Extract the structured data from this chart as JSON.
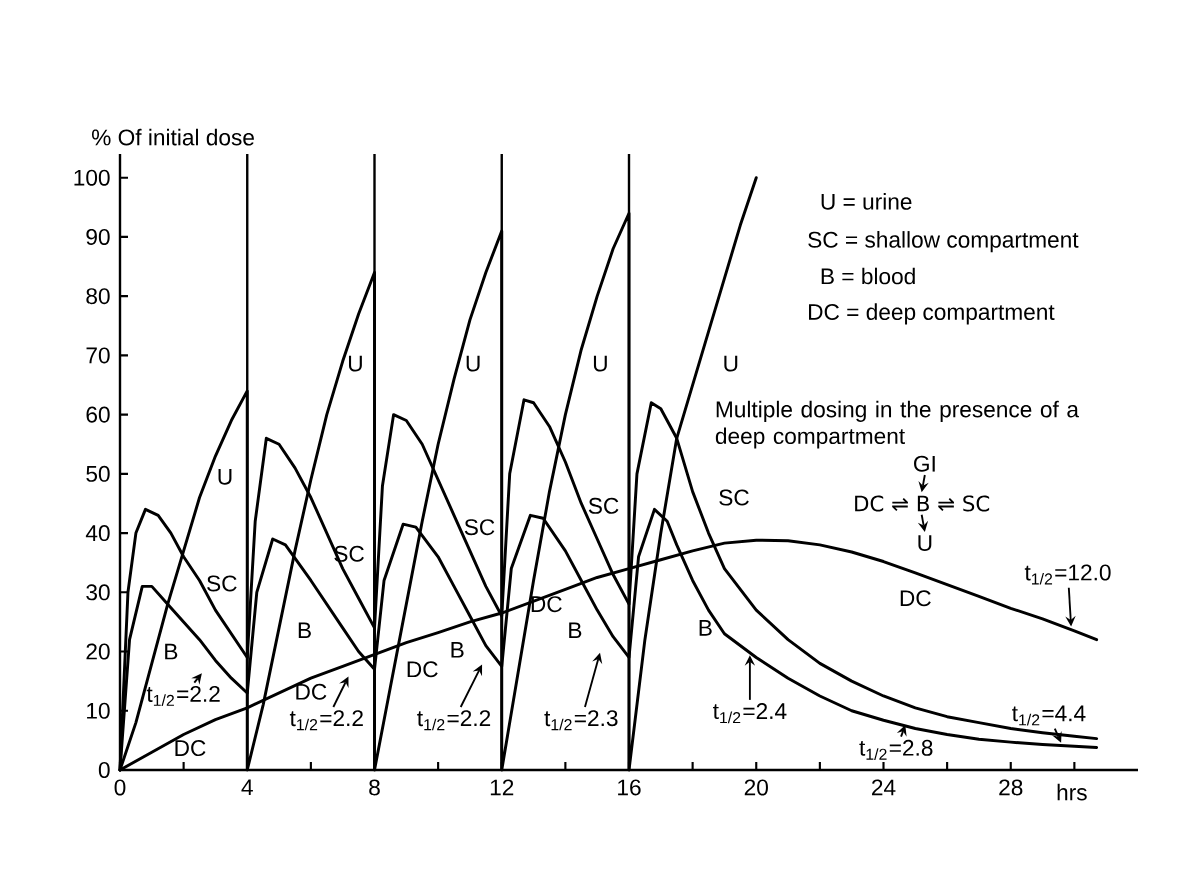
{
  "chart_data": {
    "type": "line",
    "xlabel": "hrs",
    "ylabel": "% Of initial dose",
    "xlim": [
      0,
      32
    ],
    "ylim": [
      0,
      104
    ],
    "xticks": [
      0,
      {
        "value": 2,
        "label": null
      },
      4,
      {
        "value": 6,
        "label": null
      },
      8,
      {
        "value": 10,
        "label": null
      },
      12,
      {
        "value": 14,
        "label": null
      },
      16,
      {
        "value": 18,
        "label": null
      },
      20,
      {
        "value": 22,
        "label": null
      },
      24,
      {
        "value": 26,
        "label": null
      },
      28,
      {
        "value": 30,
        "label": null
      }
    ],
    "yticks": [
      0,
      10,
      20,
      30,
      40,
      50,
      60,
      70,
      80,
      90,
      100
    ],
    "marker": "none",
    "line_style": "solid",
    "series": [
      {
        "color": "#000000",
        "x": [
          0,
          0.5,
          1,
          1.5,
          2,
          2.5,
          3,
          3.5,
          4,
          4,
          4.5,
          5,
          5.5,
          6,
          6.5,
          7,
          7.5,
          8,
          8,
          8.5,
          9,
          9.5,
          10,
          10.5,
          11,
          11.5,
          12,
          12,
          12.5,
          13,
          13.5,
          14,
          14.5,
          15,
          15.5,
          16,
          16,
          16.5,
          17,
          17.5,
          18,
          18.5,
          19,
          19.5,
          20
        ],
        "values": [
          0,
          8,
          18,
          28,
          37,
          46,
          53,
          59,
          64,
          0,
          11,
          24,
          37,
          49,
          60,
          69,
          77,
          84,
          0,
          14,
          28,
          42,
          55,
          66,
          76,
          84,
          91,
          0,
          16,
          32,
          47,
          60,
          71,
          80,
          88,
          94,
          0,
          22,
          40,
          56,
          65,
          74,
          83,
          92,
          100
        ]
      },
      {
        "color": "#000000",
        "x": [
          0,
          0.25,
          0.5,
          0.8,
          1.2,
          1.6,
          2,
          2.5,
          3,
          3.5,
          4,
          4.25,
          4.6,
          5,
          5.5,
          6,
          6.5,
          7,
          7.5,
          8,
          8.25,
          8.6,
          9,
          9.5,
          10,
          10.5,
          11,
          11.5,
          12,
          12.25,
          12.7,
          13,
          13.5,
          14,
          14.5,
          15,
          15.5,
          16,
          16.25,
          16.7,
          17,
          17.5,
          18,
          18.5,
          19,
          20,
          21,
          22,
          23,
          24,
          25,
          26,
          27,
          28,
          29,
          30,
          30.7
        ],
        "values": [
          0,
          30,
          40,
          44,
          43,
          40,
          36,
          32,
          27,
          23,
          19,
          42,
          56,
          55,
          51,
          46,
          40,
          34,
          29,
          24,
          48,
          60,
          59,
          55,
          49,
          43,
          37,
          31,
          26,
          50,
          62.5,
          62,
          58,
          52,
          45,
          39,
          33,
          28,
          50,
          62,
          61,
          56,
          47,
          40,
          34,
          27,
          22,
          18,
          15,
          12.5,
          10.5,
          9,
          8,
          7,
          6.3,
          5.7,
          5.3
        ]
      },
      {
        "color": "#000000",
        "x": [
          0,
          0.3,
          0.7,
          1,
          1.5,
          2,
          2.5,
          3,
          3.5,
          4,
          4.3,
          4.8,
          5.2,
          6,
          6.5,
          7,
          7.5,
          8,
          8.3,
          8.9,
          9.3,
          10,
          10.5,
          11,
          11.5,
          12,
          12.3,
          12.9,
          13.3,
          14,
          14.5,
          15,
          15.5,
          16,
          16.3,
          16.8,
          17.2,
          17.5,
          18,
          18.5,
          19,
          20,
          21,
          22,
          23,
          24,
          25,
          26,
          27,
          28,
          29,
          30,
          30.7
        ],
        "values": [
          0,
          22,
          31,
          31,
          28,
          25,
          22,
          18.5,
          15.5,
          13,
          30,
          39,
          38,
          32,
          28,
          24,
          20,
          17,
          32,
          41.5,
          41,
          36,
          31,
          26,
          21,
          17.5,
          34,
          43,
          42.5,
          37,
          32,
          27,
          22.5,
          19,
          36,
          44,
          42,
          38,
          32,
          27,
          23,
          19,
          15.5,
          12.5,
          10,
          8.4,
          7,
          6,
          5.2,
          4.7,
          4.3,
          4,
          3.8
        ]
      },
      {
        "color": "#000000",
        "x": [
          0,
          1,
          2,
          3,
          4,
          5,
          6,
          7,
          8,
          9,
          10,
          11,
          12,
          13,
          14,
          15,
          16,
          17,
          18,
          19,
          20,
          21,
          22,
          23,
          24,
          25,
          26,
          27,
          28,
          29,
          30,
          30.7
        ],
        "values": [
          0,
          3,
          6,
          8.5,
          10.5,
          13,
          15.5,
          17.5,
          19.5,
          21.5,
          23.2,
          25,
          26.5,
          28.5,
          30.5,
          32.5,
          34,
          35.5,
          37,
          38.3,
          38.8,
          38.7,
          38,
          36.8,
          35.2,
          33.3,
          31.3,
          29.3,
          27.3,
          25.5,
          23.5,
          22
        ]
      }
    ],
    "ref_lines": [
      {
        "axis": "x",
        "value": 4,
        "color": "#000000"
      },
      {
        "axis": "x",
        "value": 8,
        "color": "#000000"
      },
      {
        "axis": "x",
        "value": 12,
        "color": "#000000"
      },
      {
        "axis": "x",
        "value": 16,
        "color": "#000000"
      }
    ],
    "annotations": [
      "U = urine",
      "SC = shallow compartment",
      "B = blood",
      "DC = deep compartment",
      "Multiple dosing in the presence of a deep compartment",
      "GI",
      "DC ⇌ B ⇌ SC",
      "U",
      "U",
      "U",
      "U",
      "U",
      "U",
      "SC",
      "SC",
      "SC",
      "SC",
      "SC",
      "B",
      "B",
      "B",
      "B",
      "B",
      "DC",
      "DC",
      "DC",
      "DC",
      "DC",
      "t$_{1/2}$=2.2",
      "t$_{1/2}$=2.2",
      "t$_{1/2}$=2.2",
      "t$_{1/2}$=2.3",
      "t$_{1/2}$=2.4",
      "t$_{1/2}$=2.8",
      "t$_{1/2}$=4.4",
      "t$_{1/2}$=12.0"
    ]
  }
}
